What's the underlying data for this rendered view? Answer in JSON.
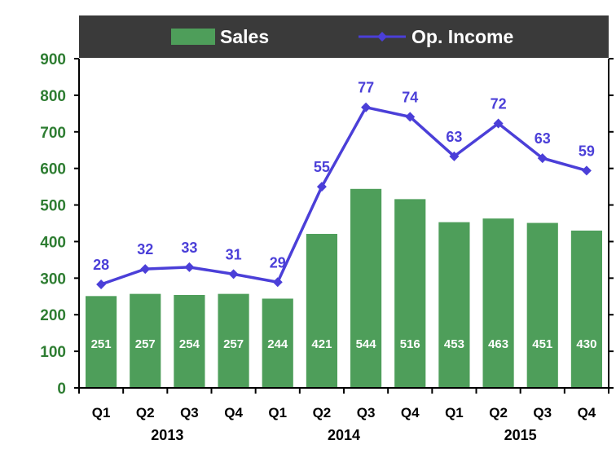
{
  "chart_data": {
    "type": "bar",
    "categories": [
      "Q1",
      "Q2",
      "Q3",
      "Q4",
      "Q1",
      "Q2",
      "Q3",
      "Q4",
      "Q1",
      "Q2",
      "Q3",
      "Q4"
    ],
    "year_groups": [
      {
        "label": "2013",
        "start": 0,
        "end": 3
      },
      {
        "label": "2014",
        "start": 4,
        "end": 7
      },
      {
        "label": "2015",
        "start": 8,
        "end": 11
      }
    ],
    "series": [
      {
        "name": "Sales",
        "type": "bar",
        "color": "#4e9e5a",
        "values": [
          251,
          257,
          254,
          257,
          244,
          421,
          544,
          516,
          453,
          463,
          451,
          430
        ],
        "labels": [
          "251",
          "257",
          "254",
          "257",
          "244",
          "421",
          "544",
          "516",
          "453",
          "463",
          "451",
          "430"
        ]
      },
      {
        "name": "Op. Income",
        "type": "line",
        "color": "#4b3fd8",
        "plot_values": [
          283,
          325,
          330,
          311,
          289,
          550,
          767,
          741,
          633,
          723,
          628,
          594
        ],
        "values": [
          28,
          32,
          33,
          31,
          29,
          55,
          77,
          74,
          63,
          72,
          63,
          59
        ],
        "labels": [
          "28",
          "32",
          "33",
          "31",
          "29",
          "55",
          "77",
          "74",
          "63",
          "72",
          "63",
          "59"
        ]
      }
    ],
    "ylim": [
      0,
      900
    ],
    "yticks": [
      0,
      100,
      200,
      300,
      400,
      500,
      600,
      700,
      800,
      900
    ],
    "title": "",
    "xlabel": "",
    "ylabel": "",
    "legend": {
      "placement": "top",
      "background": "#3a3a3a"
    },
    "grid": false
  }
}
